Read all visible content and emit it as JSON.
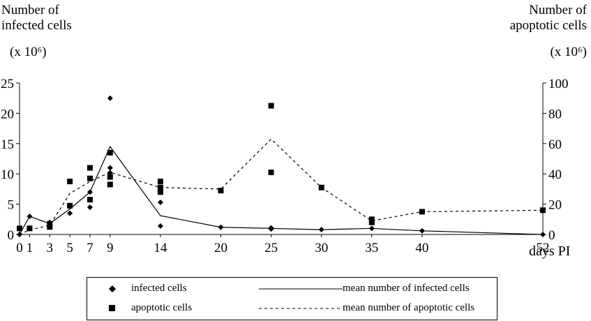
{
  "chart_data": {
    "type": "scatter",
    "left_axis": {
      "title_line1": "Number of",
      "title_line2": "infected cells",
      "units": "(x 10⁶)",
      "ylim": [
        0,
        25
      ],
      "ticks": [
        0,
        5,
        10,
        15,
        20,
        25
      ]
    },
    "right_axis": {
      "title_line1": "Number of",
      "title_line2": "apoptotic cells",
      "units": "(x 10⁶)",
      "ylim": [
        0,
        100
      ],
      "ticks": [
        0,
        20,
        40,
        60,
        80,
        100
      ]
    },
    "x_axis": {
      "label": "days PI",
      "ticks": [
        0,
        1,
        3,
        5,
        7,
        9,
        14,
        20,
        25,
        30,
        35,
        40,
        52
      ],
      "xlim": [
        0,
        52
      ]
    },
    "grid": false,
    "legend_position": "bottom",
    "series": [
      {
        "name": "infected cells",
        "kind": "points",
        "marker": "diamond",
        "axis": "left",
        "points": [
          [
            0,
            0
          ],
          [
            1,
            3.0
          ],
          [
            3,
            2.0
          ],
          [
            3,
            1.5
          ],
          [
            5,
            3.5
          ],
          [
            5,
            4.7
          ],
          [
            7,
            4.5
          ],
          [
            7,
            7.0
          ],
          [
            9,
            22.5
          ],
          [
            9,
            11.0
          ],
          [
            9,
            10.2
          ],
          [
            14,
            5.3
          ],
          [
            14,
            1.4
          ],
          [
            20,
            1.2
          ],
          [
            25,
            1.1
          ],
          [
            25,
            0.9
          ],
          [
            30,
            0.8
          ],
          [
            35,
            1.0
          ],
          [
            40,
            0.6
          ],
          [
            52,
            0
          ]
        ]
      },
      {
        "name": "apoptotic cells",
        "kind": "points",
        "marker": "square",
        "axis": "right",
        "points": [
          [
            0,
            4
          ],
          [
            1,
            4
          ],
          [
            3,
            7
          ],
          [
            3,
            5
          ],
          [
            5,
            35
          ],
          [
            5,
            19
          ],
          [
            7,
            44
          ],
          [
            7,
            37
          ],
          [
            7,
            23
          ],
          [
            9,
            54
          ],
          [
            9,
            38
          ],
          [
            9,
            33
          ],
          [
            14,
            35
          ],
          [
            14,
            31
          ],
          [
            14,
            28
          ],
          [
            20,
            29
          ],
          [
            25,
            85
          ],
          [
            25,
            41
          ],
          [
            30,
            31
          ],
          [
            35,
            10
          ],
          [
            35,
            8
          ],
          [
            40,
            15
          ],
          [
            52,
            16
          ]
        ]
      },
      {
        "name": "mean number of infected cells",
        "kind": "line",
        "style": "solid",
        "axis": "left",
        "points": [
          [
            0,
            0
          ],
          [
            1,
            3.0
          ],
          [
            3,
            1.8
          ],
          [
            5,
            4.2
          ],
          [
            7,
            7.0
          ],
          [
            9,
            14.5
          ],
          [
            14,
            3.1
          ],
          [
            20,
            1.2
          ],
          [
            25,
            1.0
          ],
          [
            30,
            0.8
          ],
          [
            35,
            1.0
          ],
          [
            40,
            0.6
          ],
          [
            52,
            0
          ]
        ]
      },
      {
        "name": "mean number of apoptotic cells",
        "kind": "line",
        "style": "dashed",
        "axis": "right",
        "points": [
          [
            0,
            0
          ],
          [
            1,
            3
          ],
          [
            3,
            6
          ],
          [
            5,
            27
          ],
          [
            7,
            35
          ],
          [
            9,
            41
          ],
          [
            14,
            31
          ],
          [
            20,
            30
          ],
          [
            25,
            63
          ],
          [
            30,
            31
          ],
          [
            35,
            9
          ],
          [
            40,
            15
          ],
          [
            52,
            16
          ]
        ]
      }
    ]
  }
}
